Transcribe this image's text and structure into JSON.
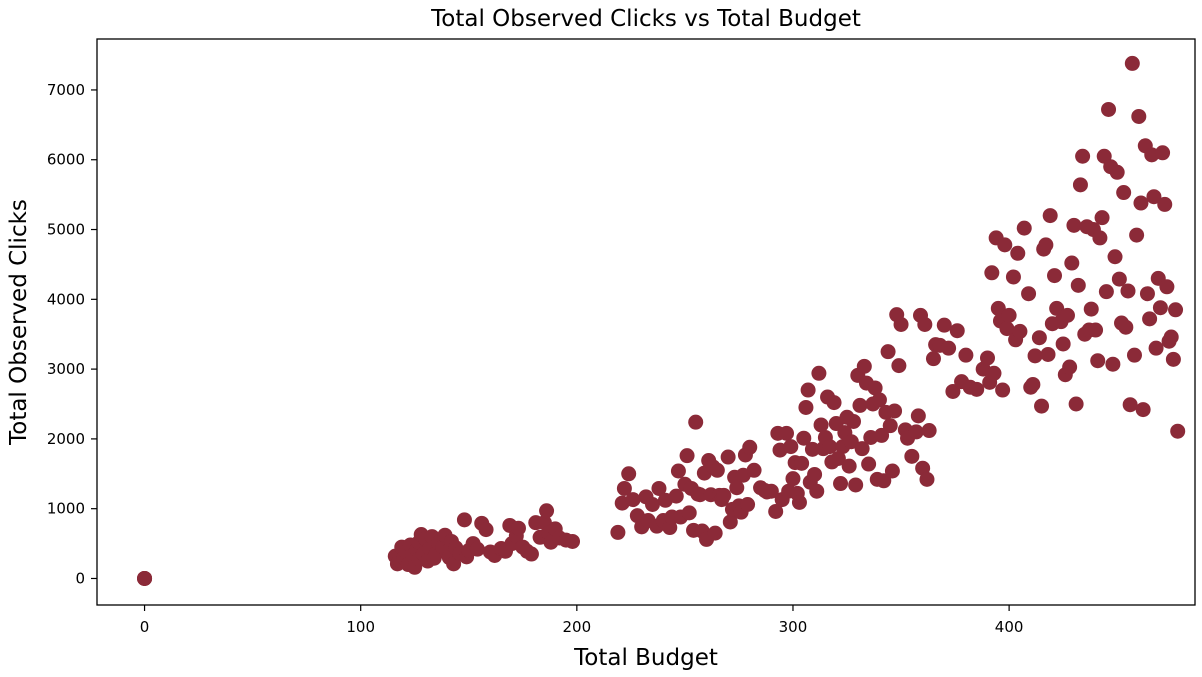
{
  "chart_data": {
    "type": "scatter",
    "title": "Total Observed Clicks vs Total Budget",
    "xlabel": "Total Budget",
    "ylabel": "Total Observed Clicks",
    "xlim": [
      -22,
      486
    ],
    "ylim": [
      -380,
      7730
    ],
    "xticks": [
      0,
      100,
      200,
      300,
      400
    ],
    "yticks": [
      0,
      1000,
      2000,
      3000,
      4000,
      5000,
      6000,
      7000
    ],
    "grid": false,
    "legend": "none",
    "marker_color": "#8b2a38",
    "points": [
      [
        0,
        0
      ],
      [
        0,
        0
      ],
      [
        0,
        0
      ],
      [
        116,
        320
      ],
      [
        117,
        210
      ],
      [
        118,
        260
      ],
      [
        119,
        450
      ],
      [
        120,
        300
      ],
      [
        121,
        380
      ],
      [
        122,
        200
      ],
      [
        123,
        480
      ],
      [
        124,
        330
      ],
      [
        125,
        160
      ],
      [
        126,
        410
      ],
      [
        127,
        520
      ],
      [
        127,
        280
      ],
      [
        128,
        630
      ],
      [
        129,
        350
      ],
      [
        130,
        570
      ],
      [
        131,
        250
      ],
      [
        132,
        430
      ],
      [
        133,
        600
      ],
      [
        134,
        290
      ],
      [
        135,
        360
      ],
      [
        136,
        510
      ],
      [
        138,
        450
      ],
      [
        139,
        620
      ],
      [
        140,
        380
      ],
      [
        141,
        300
      ],
      [
        142,
        530
      ],
      [
        143,
        210
      ],
      [
        144,
        440
      ],
      [
        146,
        360
      ],
      [
        148,
        840
      ],
      [
        149,
        310
      ],
      [
        150,
        400
      ],
      [
        152,
        500
      ],
      [
        154,
        420
      ],
      [
        156,
        790
      ],
      [
        158,
        700
      ],
      [
        160,
        380
      ],
      [
        162,
        330
      ],
      [
        165,
        430
      ],
      [
        167,
        390
      ],
      [
        169,
        760
      ],
      [
        170,
        500
      ],
      [
        172,
        610
      ],
      [
        173,
        720
      ],
      [
        175,
        450
      ],
      [
        177,
        390
      ],
      [
        179,
        350
      ],
      [
        181,
        800
      ],
      [
        183,
        590
      ],
      [
        185,
        800
      ],
      [
        186,
        970
      ],
      [
        187,
        650
      ],
      [
        188,
        520
      ],
      [
        190,
        710
      ],
      [
        192,
        580
      ],
      [
        195,
        550
      ],
      [
        198,
        530
      ],
      [
        219,
        660
      ],
      [
        221,
        1080
      ],
      [
        222,
        1290
      ],
      [
        224,
        1500
      ],
      [
        226,
        1130
      ],
      [
        228,
        900
      ],
      [
        230,
        740
      ],
      [
        232,
        1170
      ],
      [
        233,
        830
      ],
      [
        235,
        1060
      ],
      [
        237,
        750
      ],
      [
        238,
        1290
      ],
      [
        240,
        830
      ],
      [
        241,
        1120
      ],
      [
        243,
        730
      ],
      [
        244,
        880
      ],
      [
        246,
        1180
      ],
      [
        247,
        1540
      ],
      [
        248,
        880
      ],
      [
        250,
        1350
      ],
      [
        251,
        1760
      ],
      [
        252,
        940
      ],
      [
        253,
        1290
      ],
      [
        254,
        690
      ],
      [
        255,
        2240
      ],
      [
        256,
        1210
      ],
      [
        257,
        1200
      ],
      [
        258,
        680
      ],
      [
        259,
        1510
      ],
      [
        260,
        560
      ],
      [
        261,
        1690
      ],
      [
        262,
        1200
      ],
      [
        263,
        1600
      ],
      [
        264,
        650
      ],
      [
        265,
        1550
      ],
      [
        266,
        1190
      ],
      [
        267,
        1130
      ],
      [
        268,
        1190
      ],
      [
        270,
        1740
      ],
      [
        271,
        810
      ],
      [
        272,
        990
      ],
      [
        273,
        1450
      ],
      [
        274,
        1300
      ],
      [
        275,
        1040
      ],
      [
        276,
        950
      ],
      [
        277,
        1480
      ],
      [
        278,
        1770
      ],
      [
        279,
        1060
      ],
      [
        280,
        1880
      ],
      [
        282,
        1550
      ],
      [
        285,
        1300
      ],
      [
        287,
        1260
      ],
      [
        288,
        1240
      ],
      [
        290,
        1250
      ],
      [
        292,
        960
      ],
      [
        293,
        2080
      ],
      [
        294,
        1840
      ],
      [
        295,
        1130
      ],
      [
        297,
        2080
      ],
      [
        298,
        1250
      ],
      [
        299,
        1890
      ],
      [
        300,
        1430
      ],
      [
        301,
        1660
      ],
      [
        302,
        1220
      ],
      [
        303,
        1090
      ],
      [
        304,
        1650
      ],
      [
        305,
        2010
      ],
      [
        306,
        2450
      ],
      [
        307,
        2700
      ],
      [
        308,
        1380
      ],
      [
        309,
        1850
      ],
      [
        310,
        1490
      ],
      [
        311,
        1250
      ],
      [
        312,
        2940
      ],
      [
        313,
        2200
      ],
      [
        314,
        1860
      ],
      [
        315,
        2020
      ],
      [
        316,
        2600
      ],
      [
        317,
        1890
      ],
      [
        318,
        1670
      ],
      [
        319,
        2520
      ],
      [
        320,
        2220
      ],
      [
        321,
        1720
      ],
      [
        322,
        1360
      ],
      [
        323,
        1890
      ],
      [
        324,
        2090
      ],
      [
        325,
        2310
      ],
      [
        326,
        1610
      ],
      [
        327,
        1960
      ],
      [
        328,
        2250
      ],
      [
        329,
        1340
      ],
      [
        330,
        2910
      ],
      [
        331,
        2480
      ],
      [
        332,
        1860
      ],
      [
        333,
        3040
      ],
      [
        334,
        2800
      ],
      [
        335,
        1640
      ],
      [
        336,
        2020
      ],
      [
        337,
        2500
      ],
      [
        338,
        2730
      ],
      [
        339,
        1420
      ],
      [
        340,
        2560
      ],
      [
        341,
        2050
      ],
      [
        342,
        1400
      ],
      [
        343,
        2380
      ],
      [
        344,
        3250
      ],
      [
        345,
        2190
      ],
      [
        346,
        1540
      ],
      [
        347,
        2400
      ],
      [
        348,
        3780
      ],
      [
        349,
        3050
      ],
      [
        350,
        3640
      ],
      [
        352,
        2130
      ],
      [
        353,
        2010
      ],
      [
        355,
        1750
      ],
      [
        357,
        2100
      ],
      [
        358,
        2330
      ],
      [
        359,
        3770
      ],
      [
        360,
        1580
      ],
      [
        361,
        3640
      ],
      [
        362,
        1420
      ],
      [
        363,
        2120
      ],
      [
        365,
        3150
      ],
      [
        366,
        3350
      ],
      [
        368,
        3340
      ],
      [
        370,
        3630
      ],
      [
        372,
        3300
      ],
      [
        374,
        2680
      ],
      [
        376,
        3550
      ],
      [
        378,
        2820
      ],
      [
        380,
        3200
      ],
      [
        382,
        2740
      ],
      [
        385,
        2710
      ],
      [
        388,
        3000
      ],
      [
        390,
        3160
      ],
      [
        391,
        2810
      ],
      [
        392,
        4380
      ],
      [
        393,
        2940
      ],
      [
        394,
        4880
      ],
      [
        395,
        3870
      ],
      [
        396,
        3690
      ],
      [
        397,
        2700
      ],
      [
        398,
        4780
      ],
      [
        399,
        3580
      ],
      [
        400,
        3770
      ],
      [
        402,
        4320
      ],
      [
        403,
        3420
      ],
      [
        404,
        4660
      ],
      [
        405,
        3540
      ],
      [
        407,
        5020
      ],
      [
        409,
        4080
      ],
      [
        410,
        2740
      ],
      [
        411,
        2780
      ],
      [
        412,
        3190
      ],
      [
        414,
        3450
      ],
      [
        415,
        2470
      ],
      [
        416,
        4720
      ],
      [
        417,
        4780
      ],
      [
        418,
        3210
      ],
      [
        419,
        5200
      ],
      [
        420,
        3650
      ],
      [
        421,
        4340
      ],
      [
        422,
        3870
      ],
      [
        424,
        3680
      ],
      [
        425,
        3360
      ],
      [
        426,
        2920
      ],
      [
        427,
        3770
      ],
      [
        428,
        3030
      ],
      [
        429,
        4520
      ],
      [
        430,
        5060
      ],
      [
        431,
        2500
      ],
      [
        432,
        4200
      ],
      [
        433,
        5640
      ],
      [
        434,
        6050
      ],
      [
        435,
        3500
      ],
      [
        436,
        5040
      ],
      [
        437,
        3560
      ],
      [
        438,
        3860
      ],
      [
        439,
        5000
      ],
      [
        440,
        3560
      ],
      [
        441,
        3120
      ],
      [
        442,
        4880
      ],
      [
        443,
        5170
      ],
      [
        444,
        6050
      ],
      [
        445,
        4110
      ],
      [
        446,
        6720
      ],
      [
        447,
        5900
      ],
      [
        448,
        3070
      ],
      [
        449,
        4610
      ],
      [
        450,
        5820
      ],
      [
        451,
        4290
      ],
      [
        452,
        3660
      ],
      [
        453,
        5530
      ],
      [
        454,
        3600
      ],
      [
        455,
        4120
      ],
      [
        456,
        2490
      ],
      [
        457,
        7380
      ],
      [
        458,
        3200
      ],
      [
        459,
        4920
      ],
      [
        460,
        6620
      ],
      [
        461,
        5380
      ],
      [
        462,
        2420
      ],
      [
        463,
        6200
      ],
      [
        464,
        4080
      ],
      [
        465,
        3720
      ],
      [
        466,
        6070
      ],
      [
        467,
        5470
      ],
      [
        468,
        3300
      ],
      [
        469,
        4300
      ],
      [
        470,
        3880
      ],
      [
        471,
        6100
      ],
      [
        472,
        5360
      ],
      [
        473,
        4180
      ],
      [
        474,
        3400
      ],
      [
        475,
        3460
      ],
      [
        476,
        3140
      ],
      [
        477,
        3850
      ],
      [
        478,
        2110
      ]
    ]
  }
}
